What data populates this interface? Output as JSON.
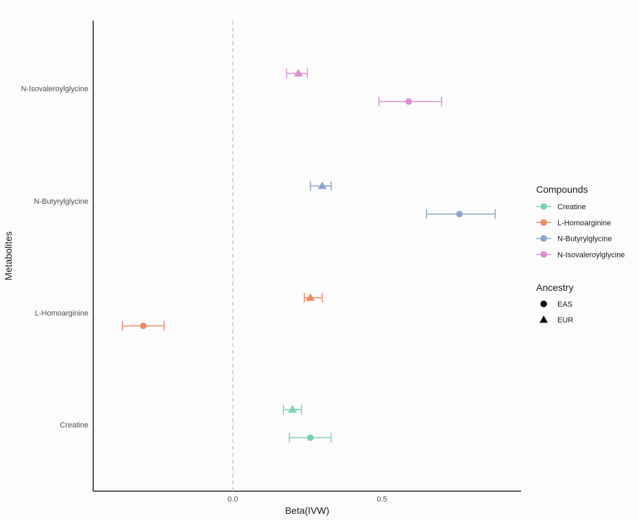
{
  "chart_data": {
    "type": "forest",
    "xlabel": "Beta(IVW)",
    "ylabel": "Metabolites",
    "xlim": [
      -0.46,
      0.96
    ],
    "x_ticks": [
      0.0,
      0.5
    ],
    "x_tick_labels": [
      "0.0",
      "0.5"
    ],
    "reference_line": 0.0,
    "categories": [
      "Creatine",
      "L-Homoarginine",
      "N-Butyrylglycine",
      "N-Isovaleroylglycine"
    ],
    "grid": false,
    "legend_position": "right",
    "legend_compounds_title": "Compounds",
    "legend_ancestry_title": "Ancestry",
    "compounds": [
      {
        "name": "Creatine",
        "color": "#7fd1ae"
      },
      {
        "name": "L-Homoarginine",
        "color": "#ee8a68"
      },
      {
        "name": "N-Butyrylglycine",
        "color": "#8fa4cc"
      },
      {
        "name": "N-Isovaleroylglycine",
        "color": "#db8ed2"
      }
    ],
    "ancestry": [
      {
        "name": "EAS",
        "shape": "circle"
      },
      {
        "name": "EUR",
        "shape": "triangle"
      }
    ],
    "points": [
      {
        "compound": "Creatine",
        "ancestry": "EAS",
        "beta": 0.26,
        "lo": 0.19,
        "hi": 0.33
      },
      {
        "compound": "Creatine",
        "ancestry": "EUR",
        "beta": 0.2,
        "lo": 0.17,
        "hi": 0.23
      },
      {
        "compound": "L-Homoarginine",
        "ancestry": "EAS",
        "beta": -0.3,
        "lo": -0.37,
        "hi": -0.23
      },
      {
        "compound": "L-Homoarginine",
        "ancestry": "EUR",
        "beta": 0.26,
        "lo": 0.24,
        "hi": 0.3
      },
      {
        "compound": "N-Butyrylglycine",
        "ancestry": "EAS",
        "beta": 0.76,
        "lo": 0.65,
        "hi": 0.88
      },
      {
        "compound": "N-Butyrylglycine",
        "ancestry": "EUR",
        "beta": 0.3,
        "lo": 0.26,
        "hi": 0.33
      },
      {
        "compound": "N-Isovaleroylglycine",
        "ancestry": "EAS",
        "beta": 0.59,
        "lo": 0.49,
        "hi": 0.7
      },
      {
        "compound": "N-Isovaleroylglycine",
        "ancestry": "EUR",
        "beta": 0.22,
        "lo": 0.18,
        "hi": 0.25
      }
    ]
  }
}
